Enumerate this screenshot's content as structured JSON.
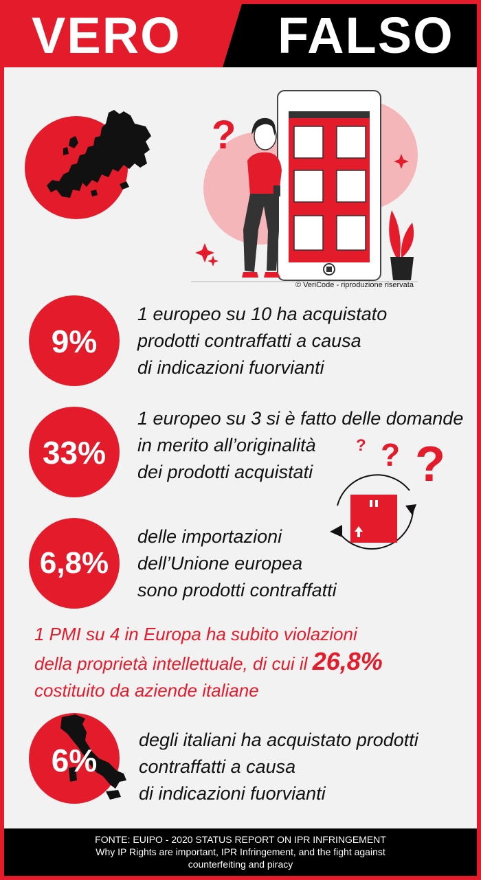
{
  "header": {
    "left_word": "VERO",
    "right_word": "FALSO"
  },
  "colors": {
    "accent": "#e31b2b",
    "dark": "#000000",
    "background": "#f3f2f2"
  },
  "illustration": {
    "copyright": "© VeriCode - riproduzione riservata"
  },
  "stats": [
    {
      "value": "9%",
      "lines": [
        "1 europeo su 10 ha acquistato",
        "prodotti contraffatti a causa",
        "di indicazioni fuorvianti"
      ]
    },
    {
      "value": "33%",
      "lines": [
        "1 europeo su 3 si è fatto delle domande",
        "in merito all’originalità",
        "dei prodotti acquistati"
      ]
    },
    {
      "value": "6,8%",
      "lines": [
        "delle importazioni",
        "dell’Unione europea",
        "sono prodotti contraffatti"
      ]
    }
  ],
  "pmi": {
    "line1": "1 PMI su 4 in Europa ha subito  violazioni",
    "line2_prefix": "della proprietà intellettuale, di cui il ",
    "line2_highlight": "26,8%",
    "line3": "costituito da aziende italiane"
  },
  "italy": {
    "value": "6%",
    "lines": [
      "degli italiani ha acquistato prodotti",
      "contraffatti a causa",
      "di indicazioni fuorvianti"
    ]
  },
  "footer": {
    "line1": "FONTE: EUIPO - 2020 STATUS REPORT ON IPR INFRINGEMENT",
    "line2": "Why IP Rights are important, IPR Infringement, and the fight against",
    "line3": "counterfeiting and piracy"
  }
}
